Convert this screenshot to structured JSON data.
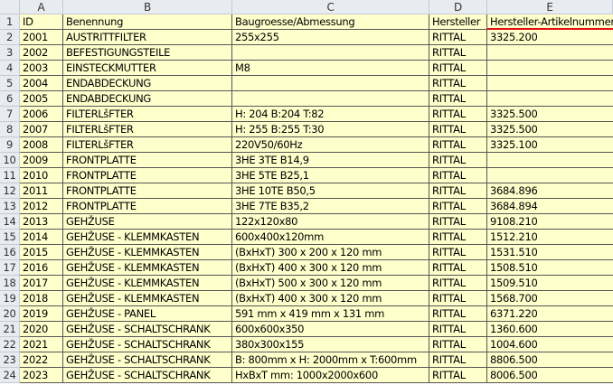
{
  "column_headers": [
    "A",
    "B",
    "C",
    "D",
    "E"
  ],
  "underline_color": "#e01010",
  "fill_color": "#ffffcc",
  "rows": [
    [
      "1",
      "ID",
      "Benennung",
      "Baugroesse/Abmessung",
      "Hersteller",
      "Hersteller-Artikelnummer"
    ],
    [
      "2",
      "2001",
      "AUSTRITTFILTER",
      "255x255",
      "RITTAL",
      "3325.200"
    ],
    [
      "3",
      "2002",
      "BEFESTIGUNGSTEILE",
      "",
      "RITTAL",
      ""
    ],
    [
      "4",
      "2003",
      "EINSTECKMUTTER",
      "M8",
      "RITTAL",
      ""
    ],
    [
      "5",
      "2004",
      "ENDABDECKUNG",
      "",
      "RITTAL",
      ""
    ],
    [
      "6",
      "2005",
      "ENDABDECKUNG",
      "",
      "RITTAL",
      ""
    ],
    [
      "7",
      "2006",
      "FILTERLšFTER",
      "H: 204 B:204 T:82",
      "RITTAL",
      "3325.500"
    ],
    [
      "8",
      "2007",
      "FILTERLšFTER",
      "H: 255 B:255 T:30",
      "RITTAL",
      "3325.500"
    ],
    [
      "9",
      "2008",
      "FILTERLšFTER",
      "220V50/60Hz",
      "RITTAL",
      "3325.100"
    ],
    [
      "10",
      "2009",
      "FRONTPLATTE",
      "3HE 3TE B14,9",
      "RITTAL",
      ""
    ],
    [
      "11",
      "2010",
      "FRONTPLATTE",
      "3HE 5TE B25,1",
      "RITTAL",
      ""
    ],
    [
      "12",
      "2011",
      "FRONTPLATTE",
      "3HE 10TE B50,5",
      "RITTAL",
      "3684.896"
    ],
    [
      "13",
      "2012",
      "FRONTPLATTE",
      "3HE 7TE B35,2",
      "RITTAL",
      "3684.894"
    ],
    [
      "14",
      "2013",
      "GEHŽUSE",
      "122x120x80",
      "RITTAL",
      "9108.210"
    ],
    [
      "15",
      "2014",
      "GEHŽUSE - KLEMMKASTEN",
      "600x400x120mm",
      "RITTAL",
      "1512.210"
    ],
    [
      "16",
      "2015",
      "GEHŽUSE - KLEMMKASTEN",
      "(BxHxT) 300 x 200 x 120 mm",
      "RITTAL",
      "1531.510"
    ],
    [
      "17",
      "2016",
      "GEHŽUSE - KLEMMKASTEN",
      "(BxHxT) 400 x 300 x 120 mm",
      "RITTAL",
      "1508.510"
    ],
    [
      "18",
      "2017",
      "GEHŽUSE - KLEMMKASTEN",
      "(BxHxT) 500 x 300 x 120 mm",
      "RITTAL",
      "1509.510"
    ],
    [
      "19",
      "2018",
      "GEHŽUSE - KLEMMKASTEN",
      "(BxHxT) 400 x 300 x 120 mm",
      "RITTAL",
      "1568.700"
    ],
    [
      "20",
      "2019",
      "GEHŽUSE - PANEL",
      "591 mm x 419 mm x 131 mm",
      "RITTAL",
      "6371.220"
    ],
    [
      "21",
      "2020",
      "GEHŽUSE - SCHALTSCHRANK",
      "600x600x350",
      "RITTAL",
      "1360.600"
    ],
    [
      "22",
      "2021",
      "GEHŽUSE - SCHALTSCHRANK",
      "380x300x155",
      "RITTAL",
      "1004.600"
    ],
    [
      "23",
      "2022",
      "GEHŽUSE - SCHALTSCHRANK",
      "B: 800mm x H: 2000mm x T:600mm",
      "RITTAL",
      "8806.500"
    ],
    [
      "24",
      "2023",
      "GEHŽUSE - SCHALTSCHRANK",
      "HxBxT mm: 1000x2000x600",
      "RITTAL",
      "8006.500"
    ]
  ]
}
